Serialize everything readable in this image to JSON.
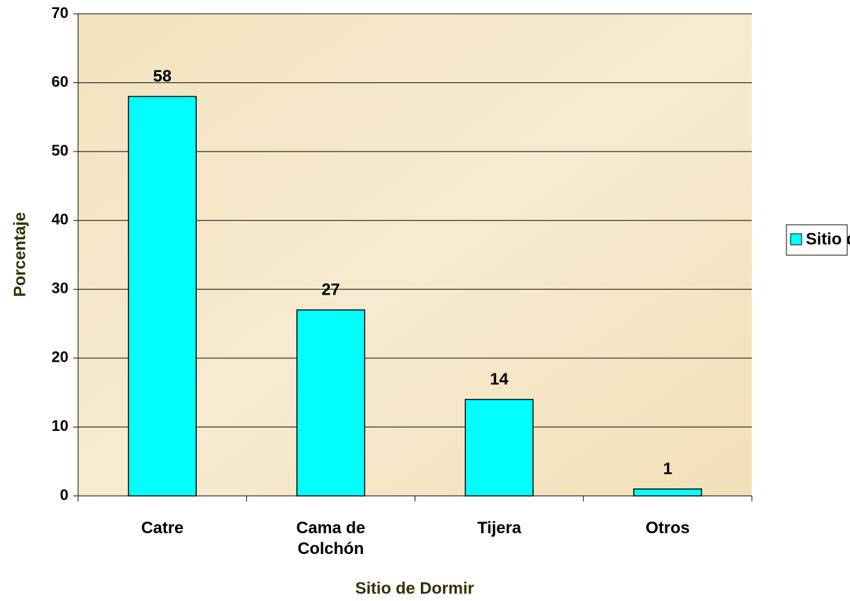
{
  "chart_data": {
    "type": "bar",
    "categories": [
      "Catre",
      "Cama de Colchón",
      "Tijera",
      "Otros"
    ],
    "values": [
      58,
      27,
      14,
      1
    ],
    "color": "#00ffff",
    "series_name": "Sitio de Dormir",
    "xlabel": "Sitio de Dormir",
    "ylabel": "Porcentaje",
    "ylim": [
      0,
      70
    ],
    "yticks": [
      0,
      10,
      20,
      30,
      40,
      50,
      60,
      70
    ],
    "grid": true,
    "legend": "right"
  }
}
